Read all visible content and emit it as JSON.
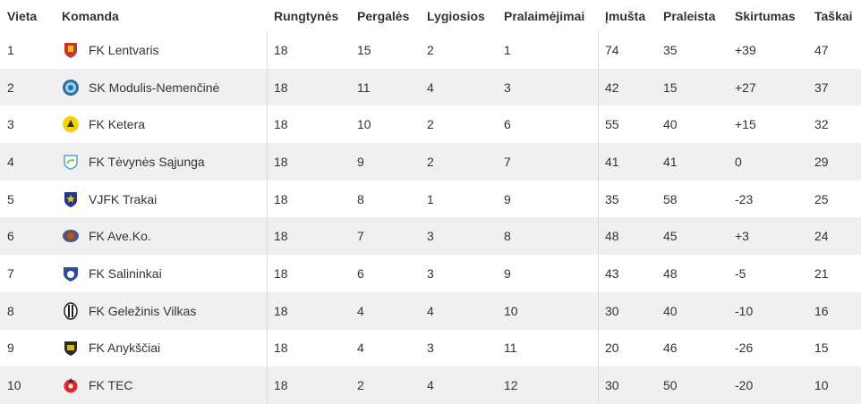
{
  "headers": {
    "rank": "Vieta",
    "team": "Komanda",
    "played": "Rungtynės",
    "wins": "Pergalės",
    "draws": "Lygiosios",
    "losses": "Pralaimėjimai",
    "scored": "Įmušta",
    "conceded": "Praleista",
    "diff": "Skirtumas",
    "points": "Taškai"
  },
  "rows": [
    {
      "rank": "1",
      "team": "FK Lentvaris",
      "played": "18",
      "wins": "15",
      "draws": "2",
      "losses": "1",
      "scored": "74",
      "conceded": "35",
      "diff": "+39",
      "points": "47",
      "logo_icon": "lentvaris-crest-icon",
      "logo_colors": [
        "#c0392b",
        "#f1c40f"
      ]
    },
    {
      "rank": "2",
      "team": "SK Modulis-Nemenčinė",
      "played": "18",
      "wins": "11",
      "draws": "4",
      "losses": "3",
      "scored": "42",
      "conceded": "15",
      "diff": "+27",
      "points": "37",
      "logo_icon": "modulis-crest-icon",
      "logo_colors": [
        "#2c6fa6",
        "#9ad0ec"
      ]
    },
    {
      "rank": "3",
      "team": "FK Ketera",
      "played": "18",
      "wins": "10",
      "draws": "2",
      "losses": "6",
      "scored": "55",
      "conceded": "40",
      "diff": "+15",
      "points": "32",
      "logo_icon": "ketera-crest-icon",
      "logo_colors": [
        "#f4d20a",
        "#333333"
      ]
    },
    {
      "rank": "4",
      "team": "FK Tėvynės Sąjunga",
      "played": "18",
      "wins": "9",
      "draws": "2",
      "losses": "7",
      "scored": "41",
      "conceded": "41",
      "diff": "0",
      "points": "29",
      "logo_icon": "tevynes-sajunga-crest-icon",
      "logo_colors": [
        "#4aa3d8",
        "#8bc34a"
      ]
    },
    {
      "rank": "5",
      "team": "VJFK Trakai",
      "played": "18",
      "wins": "8",
      "draws": "1",
      "losses": "9",
      "scored": "35",
      "conceded": "58",
      "diff": "-23",
      "points": "25",
      "logo_icon": "trakai-crest-icon",
      "logo_colors": [
        "#1f3a8a",
        "#f1c40f"
      ]
    },
    {
      "rank": "6",
      "team": "FK Ave.Ko.",
      "played": "18",
      "wins": "7",
      "draws": "3",
      "losses": "8",
      "scored": "48",
      "conceded": "45",
      "diff": "+3",
      "points": "24",
      "logo_icon": "aveko-crest-icon",
      "logo_colors": [
        "#555577",
        "#d35400"
      ]
    },
    {
      "rank": "7",
      "team": "FK Salininkai",
      "played": "18",
      "wins": "6",
      "draws": "3",
      "losses": "9",
      "scored": "43",
      "conceded": "48",
      "diff": "-5",
      "points": "21",
      "logo_icon": "salininkai-crest-icon",
      "logo_colors": [
        "#2b4c9b",
        "#ffffff"
      ]
    },
    {
      "rank": "8",
      "team": "FK Geležinis Vilkas",
      "played": "18",
      "wins": "4",
      "draws": "4",
      "losses": "10",
      "scored": "30",
      "conceded": "40",
      "diff": "-10",
      "points": "16",
      "logo_icon": "gelezinis-vilkas-crest-icon",
      "logo_colors": [
        "#222222",
        "#ffffff"
      ]
    },
    {
      "rank": "9",
      "team": "FK Anykščiai",
      "played": "18",
      "wins": "4",
      "draws": "3",
      "losses": "11",
      "scored": "20",
      "conceded": "46",
      "diff": "-26",
      "points": "15",
      "logo_icon": "anyksciai-crest-icon",
      "logo_colors": [
        "#2a2a2a",
        "#e2b714"
      ]
    },
    {
      "rank": "10",
      "team": "FK TEC",
      "played": "18",
      "wins": "2",
      "draws": "4",
      "losses": "12",
      "scored": "30",
      "conceded": "50",
      "diff": "-20",
      "points": "10",
      "logo_icon": "tec-crest-icon",
      "logo_colors": [
        "#e0282e",
        "#333333"
      ]
    }
  ]
}
